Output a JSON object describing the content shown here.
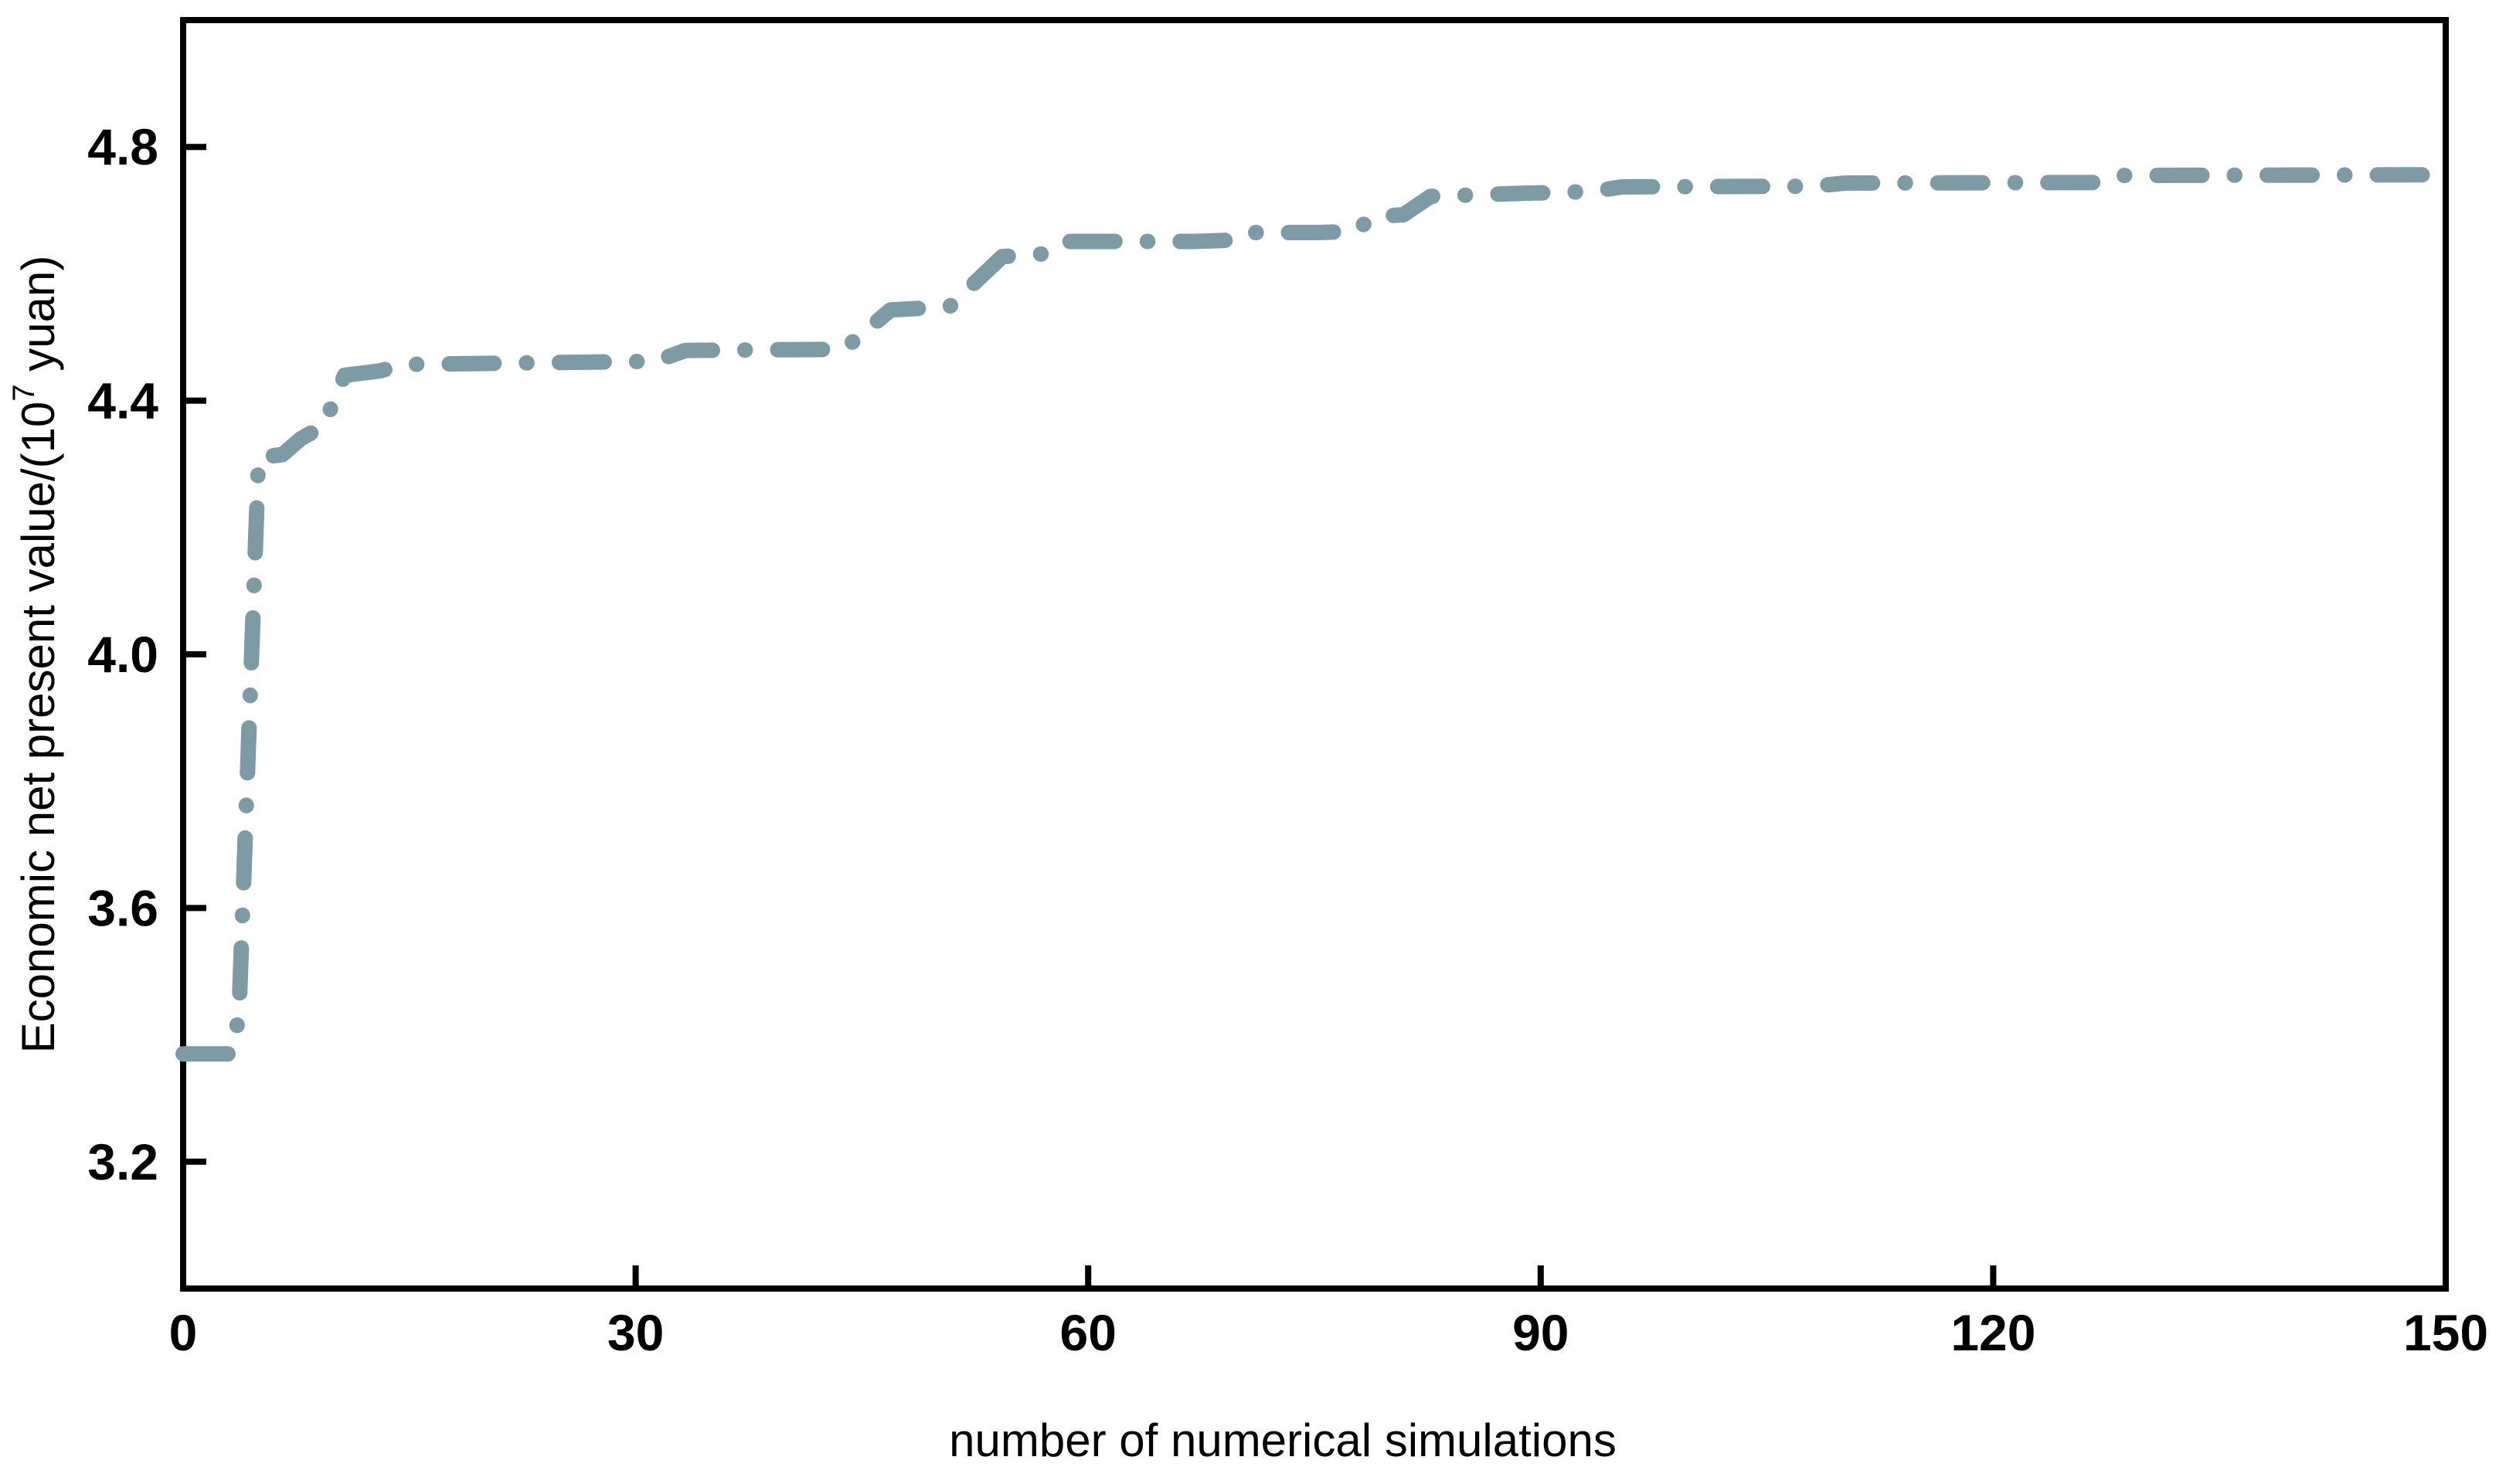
{
  "chart_data": {
    "type": "line",
    "title": "",
    "xlabel": "number of numerical simulations",
    "ylabel": "Economic net present value/(10^7 yuan)",
    "ylabel_parts": {
      "pre": "Economic net present value/(10",
      "sup": "7",
      "post": " yuan)"
    },
    "xlim": [
      0,
      150
    ],
    "ylim": [
      3.0,
      5.0
    ],
    "x_ticks": [
      "0",
      "30",
      "60",
      "90",
      "120",
      "150"
    ],
    "x_tick_values": [
      0,
      30,
      60,
      90,
      120,
      150
    ],
    "y_ticks": [
      "3.2",
      "3.6",
      "4.0",
      "4.4",
      "4.8"
    ],
    "y_tick_values": [
      3.2,
      3.6,
      4.0,
      4.4,
      4.8
    ],
    "grid": false,
    "legend_position": "none",
    "series": [
      {
        "name": "economic-npv-convergence",
        "line_style": "dash-dot",
        "color": "#7D9BA5",
        "points": [
          [
            0,
            3.37
          ],
          [
            3.2,
            3.37
          ],
          [
            3.7,
            3.43
          ],
          [
            5.0,
            4.31
          ],
          [
            6.6,
            4.315
          ],
          [
            7.8,
            4.34
          ],
          [
            9.3,
            4.36
          ],
          [
            10.7,
            4.44
          ],
          [
            13.1,
            4.447
          ],
          [
            14.4,
            4.457
          ],
          [
            31.3,
            4.462
          ],
          [
            33.3,
            4.479
          ],
          [
            43.8,
            4.481
          ],
          [
            46.9,
            4.543
          ],
          [
            50.8,
            4.548
          ],
          [
            54.3,
            4.627
          ],
          [
            57.4,
            4.632
          ],
          [
            58.7,
            4.651
          ],
          [
            67.1,
            4.651
          ],
          [
            69.5,
            4.653
          ],
          [
            70.6,
            4.665
          ],
          [
            75.3,
            4.665
          ],
          [
            77.7,
            4.667
          ],
          [
            78.9,
            4.69
          ],
          [
            80.9,
            4.693
          ],
          [
            82.7,
            4.722
          ],
          [
            88.9,
            4.727
          ],
          [
            91.1,
            4.728
          ],
          [
            93.5,
            4.73
          ],
          [
            95.4,
            4.737
          ],
          [
            108,
            4.738
          ],
          [
            110.2,
            4.743
          ],
          [
            127,
            4.744
          ],
          [
            128.7,
            4.755
          ],
          [
            148.7,
            4.756
          ]
        ]
      }
    ],
    "style": {
      "axis_color": "#000000",
      "background": "#ffffff",
      "ticks_direction": "in"
    }
  }
}
